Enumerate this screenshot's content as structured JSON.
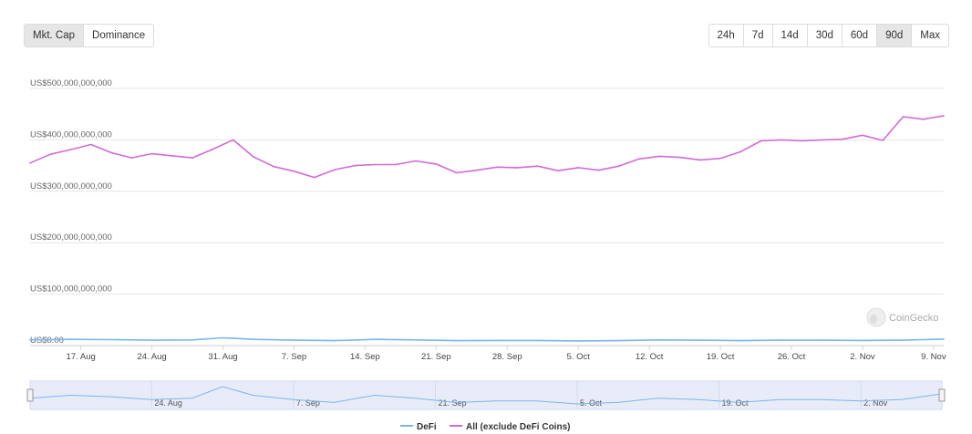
{
  "metric_toggle": {
    "options": [
      "Mkt. Cap",
      "Dominance"
    ],
    "selected": "Mkt. Cap"
  },
  "range_toggle": {
    "options": [
      "24h",
      "7d",
      "14d",
      "30d",
      "60d",
      "90d",
      "Max"
    ],
    "selected": "90d"
  },
  "watermark": "CoinGecko",
  "colors": {
    "defi": "#7cb5ec",
    "all": "#d16bd6",
    "grid": "#e6e6e6",
    "navigator_fill": "#e8ecf9"
  },
  "chart_data": {
    "type": "line",
    "title": "",
    "xlabel": "",
    "ylabel": "",
    "y_tick_labels": [
      "US$0.00",
      "US$100,000,000,000",
      "US$200,000,000,000",
      "US$300,000,000,000",
      "US$400,000,000,000",
      "US$500,000,000,000"
    ],
    "y_ticks": [
      0,
      100000000000,
      200000000000,
      300000000000,
      400000000000,
      500000000000
    ],
    "ylim": [
      0,
      500000000000
    ],
    "xlim": [
      "2020-08-12",
      "2020-11-10"
    ],
    "x_tick_labels": [
      "17. Aug",
      "24. Aug",
      "31. Aug",
      "7. Sep",
      "14. Sep",
      "21. Sep",
      "28. Sep",
      "5. Oct",
      "12. Oct",
      "19. Oct",
      "26. Oct",
      "2. Nov",
      "9. Nov"
    ],
    "x_ticks": [
      "2020-08-17",
      "2020-08-24",
      "2020-08-31",
      "2020-09-07",
      "2020-09-14",
      "2020-09-21",
      "2020-09-28",
      "2020-10-05",
      "2020-10-12",
      "2020-10-19",
      "2020-10-26",
      "2020-11-02",
      "2020-11-09"
    ],
    "navigator_tick_labels": [
      "24. Aug",
      "7. Sep",
      "21. Sep",
      "5. Oct",
      "19. Oct",
      "2. Nov"
    ],
    "navigator_ticks": [
      "2020-08-24",
      "2020-09-07",
      "2020-09-21",
      "2020-10-05",
      "2020-10-19",
      "2020-11-02"
    ],
    "grid": true,
    "legend_position": "bottom-center",
    "series": [
      {
        "name": "All (exclude DeFi Coins)",
        "color": "#d16bd6",
        "x": [
          "2020-08-12",
          "2020-08-14",
          "2020-08-16",
          "2020-08-18",
          "2020-08-20",
          "2020-08-22",
          "2020-08-24",
          "2020-08-26",
          "2020-08-28",
          "2020-08-30",
          "2020-09-01",
          "2020-09-03",
          "2020-09-05",
          "2020-09-07",
          "2020-09-09",
          "2020-09-11",
          "2020-09-13",
          "2020-09-15",
          "2020-09-17",
          "2020-09-19",
          "2020-09-21",
          "2020-09-23",
          "2020-09-25",
          "2020-09-27",
          "2020-09-29",
          "2020-10-01",
          "2020-10-03",
          "2020-10-05",
          "2020-10-07",
          "2020-10-09",
          "2020-10-11",
          "2020-10-13",
          "2020-10-15",
          "2020-10-17",
          "2020-10-19",
          "2020-10-21",
          "2020-10-23",
          "2020-10-25",
          "2020-10-27",
          "2020-10-29",
          "2020-10-31",
          "2020-11-02",
          "2020-11-04",
          "2020-11-06",
          "2020-11-08",
          "2020-11-10"
        ],
        "values": [
          355000000000,
          372000000000,
          381000000000,
          391000000000,
          375000000000,
          365000000000,
          373000000000,
          369000000000,
          365000000000,
          382000000000,
          400000000000,
          367000000000,
          348000000000,
          339000000000,
          327000000000,
          342000000000,
          350000000000,
          352000000000,
          352000000000,
          359000000000,
          353000000000,
          336000000000,
          341000000000,
          347000000000,
          346000000000,
          349000000000,
          340000000000,
          346000000000,
          341000000000,
          349000000000,
          363000000000,
          368000000000,
          366000000000,
          361000000000,
          364000000000,
          377000000000,
          398000000000,
          400000000000,
          398000000000,
          400000000000,
          401000000000,
          409000000000,
          399000000000,
          445000000000,
          440000000000,
          447000000000
        ]
      },
      {
        "name": "DeFi",
        "color": "#7cb5ec",
        "x": [
          "2020-08-12",
          "2020-08-16",
          "2020-08-20",
          "2020-08-24",
          "2020-08-28",
          "2020-08-31",
          "2020-09-03",
          "2020-09-07",
          "2020-09-11",
          "2020-09-15",
          "2020-09-19",
          "2020-09-23",
          "2020-09-27",
          "2020-10-01",
          "2020-10-05",
          "2020-10-09",
          "2020-10-13",
          "2020-10-17",
          "2020-10-21",
          "2020-10-25",
          "2020-10-29",
          "2020-11-02",
          "2020-11-06",
          "2020-11-10"
        ],
        "values": [
          11000000000,
          12000000000,
          11500000000,
          10500000000,
          11000000000,
          15000000000,
          12000000000,
          10500000000,
          9500000000,
          12000000000,
          11000000000,
          9500000000,
          10000000000,
          10000000000,
          9000000000,
          9500000000,
          11000000000,
          10500000000,
          9500000000,
          10500000000,
          10500000000,
          10000000000,
          10500000000,
          12500000000
        ]
      }
    ]
  }
}
